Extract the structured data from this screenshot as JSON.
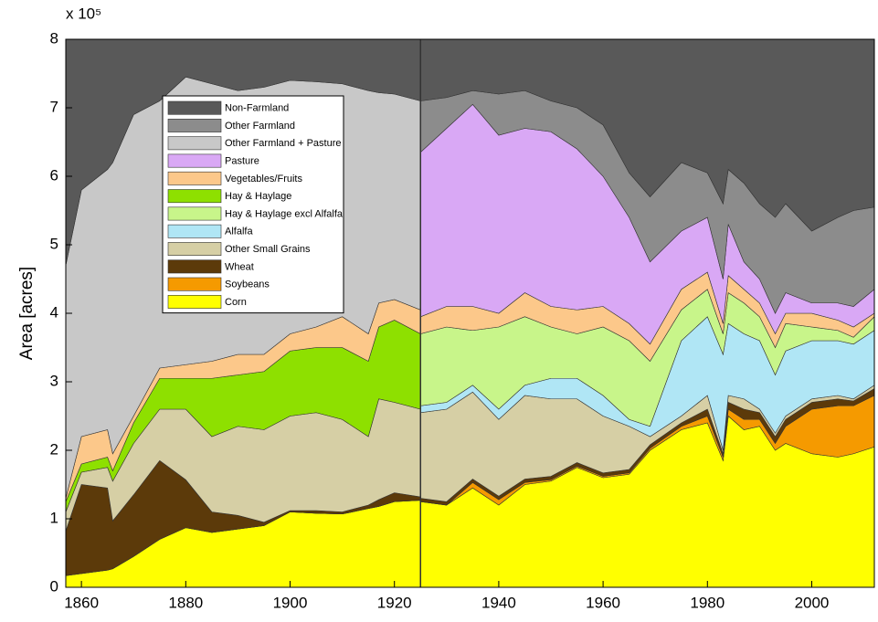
{
  "chart_data": {
    "type": "stacked_area",
    "y_label": "Area [acres]",
    "y_multiplier": "x 10⁵",
    "x": [
      1857,
      1860,
      1865,
      1866,
      1870,
      1875,
      1880,
      1885,
      1890,
      1895,
      1900,
      1905,
      1910,
      1915,
      1917,
      1920,
      1925,
      1925,
      1930,
      1935,
      1940,
      1945,
      1950,
      1955,
      1960,
      1965,
      1969,
      1975,
      1980,
      1983,
      1984,
      1987,
      1990,
      1993,
      1995,
      2000,
      2005,
      2008,
      2012
    ],
    "xlim": [
      1857,
      2012
    ],
    "xticks": [
      1860,
      1880,
      1900,
      1920,
      1940,
      1960,
      1980,
      2000
    ],
    "ylim": [
      0,
      8
    ],
    "yticks": [
      0,
      1,
      2,
      3,
      4,
      5,
      6,
      7,
      8
    ],
    "legend": "upper left",
    "series": [
      {
        "name": "Corn",
        "color": "#ffff00",
        "values": [
          0.17,
          0.2,
          0.25,
          0.27,
          0.45,
          0.7,
          0.87,
          0.8,
          0.85,
          0.9,
          1.1,
          1.08,
          1.07,
          1.15,
          1.18,
          1.25,
          1.27,
          1.25,
          1.2,
          1.45,
          1.2,
          1.5,
          1.55,
          1.75,
          1.6,
          1.65,
          2.0,
          2.3,
          2.4,
          1.85,
          2.5,
          2.3,
          2.35,
          2.0,
          2.1,
          1.95,
          1.9,
          1.95,
          2.05
        ]
      },
      {
        "name": "Soybeans",
        "color": "#f59a00",
        "values": [
          0,
          0,
          0,
          0,
          0,
          0,
          0,
          0,
          0,
          0,
          0,
          0,
          0,
          0,
          0,
          0,
          0,
          0,
          0,
          0.08,
          0.08,
          0.03,
          0.02,
          0.02,
          0.02,
          0.02,
          0.03,
          0.05,
          0.1,
          0.05,
          0.1,
          0.15,
          0.1,
          0.1,
          0.25,
          0.65,
          0.75,
          0.7,
          0.75
        ]
      },
      {
        "name": "Wheat",
        "color": "#5c3a0a",
        "values": [
          0.65,
          1.3,
          1.2,
          0.7,
          0.9,
          1.15,
          0.7,
          0.3,
          0.2,
          0.05,
          0.02,
          0.04,
          0.03,
          0.05,
          0.1,
          0.13,
          0.05,
          0.05,
          0.05,
          0.05,
          0.05,
          0.05,
          0.05,
          0.05,
          0.05,
          0.05,
          0.05,
          0.05,
          0.1,
          0.05,
          0.1,
          0.15,
          0.1,
          0.1,
          0.1,
          0.1,
          0.1,
          0.07,
          0.1
        ]
      },
      {
        "name": "Other Small Grains",
        "color": "#d6cfa5",
        "values": [
          0.28,
          0.18,
          0.3,
          0.58,
          0.75,
          0.75,
          1.03,
          1.1,
          1.3,
          1.35,
          1.38,
          1.43,
          1.35,
          1.0,
          1.47,
          1.32,
          1.28,
          1.25,
          1.35,
          1.27,
          1.12,
          1.22,
          1.13,
          0.93,
          0.83,
          0.63,
          0.12,
          0.1,
          0.2,
          0.05,
          0.1,
          0.15,
          0.05,
          0.05,
          0.05,
          0.05,
          0.05,
          0.03,
          0.05
        ]
      },
      {
        "name": "Alfalfa",
        "color": "#b0e6f5",
        "values": [
          null,
          null,
          null,
          null,
          null,
          null,
          null,
          null,
          null,
          null,
          null,
          null,
          null,
          null,
          null,
          null,
          null,
          0.1,
          0.1,
          0.1,
          0.15,
          0.15,
          0.3,
          0.3,
          0.3,
          0.1,
          0.15,
          1.1,
          1.15,
          1.4,
          1.05,
          0.95,
          1.0,
          0.85,
          0.95,
          0.85,
          0.8,
          0.8,
          0.8
        ]
      },
      {
        "name": "Hay & Haylage excl Alfalfa",
        "color": "#c8f58a",
        "values": [
          null,
          null,
          null,
          null,
          null,
          null,
          null,
          null,
          null,
          null,
          null,
          null,
          null,
          null,
          null,
          null,
          null,
          1.05,
          1.1,
          0.8,
          1.2,
          1.0,
          0.75,
          0.65,
          1.0,
          1.15,
          0.95,
          0.45,
          0.4,
          0.3,
          0.45,
          0.45,
          0.35,
          0.4,
          0.4,
          0.2,
          0.15,
          0.1,
          0.2
        ]
      },
      {
        "name": "Hay & Haylage",
        "color": "#8ee000",
        "values": [
          0.15,
          0.12,
          0.15,
          0.15,
          0.3,
          0.45,
          0.45,
          0.85,
          0.75,
          0.85,
          0.95,
          0.95,
          1.05,
          1.1,
          1.05,
          1.2,
          1.1,
          null,
          null,
          null,
          null,
          null,
          null,
          null,
          null,
          null,
          null,
          null,
          null,
          null,
          null,
          null,
          null,
          null,
          null,
          null,
          null,
          null,
          null
        ]
      },
      {
        "name": "Vegetables/Fruits",
        "color": "#fcc88a",
        "values": [
          0.05,
          0.4,
          0.4,
          0.25,
          0.1,
          0.15,
          0.2,
          0.25,
          0.3,
          0.25,
          0.25,
          0.3,
          0.45,
          0.4,
          0.35,
          0.3,
          0.35,
          0.25,
          0.3,
          0.35,
          0.2,
          0.35,
          0.3,
          0.35,
          0.3,
          0.25,
          0.25,
          0.3,
          0.25,
          0.15,
          0.25,
          0.2,
          0.2,
          0.2,
          0.15,
          0.2,
          0.15,
          0.15,
          0.05
        ]
      },
      {
        "name": "Pasture",
        "color": "#d9a8f5",
        "values": [
          null,
          null,
          null,
          null,
          null,
          null,
          null,
          null,
          null,
          null,
          null,
          null,
          null,
          null,
          null,
          null,
          null,
          2.4,
          2.6,
          2.95,
          2.6,
          2.4,
          2.55,
          2.35,
          1.9,
          1.55,
          1.2,
          0.85,
          0.8,
          0.65,
          0.75,
          0.4,
          0.35,
          0.3,
          0.3,
          0.15,
          0.25,
          0.3,
          0.35
        ]
      },
      {
        "name": "Other Farmland + Pasture",
        "color": "#c8c8c8",
        "values": [
          3.4,
          3.6,
          3.8,
          4.25,
          4.4,
          3.9,
          4.2,
          4.05,
          3.85,
          3.9,
          3.7,
          3.58,
          3.4,
          3.55,
          3.07,
          3.0,
          3.05,
          null,
          null,
          null,
          null,
          null,
          null,
          null,
          null,
          null,
          null,
          null,
          null,
          null,
          null,
          null,
          null,
          null,
          null,
          null,
          null,
          null,
          null
        ]
      },
      {
        "name": "Other Farmland",
        "color": "#8c8c8c",
        "values": [
          null,
          null,
          null,
          null,
          null,
          null,
          null,
          null,
          null,
          null,
          null,
          null,
          null,
          null,
          null,
          null,
          null,
          0.75,
          0.45,
          0.2,
          0.6,
          0.55,
          0.45,
          0.6,
          0.75,
          0.65,
          0.95,
          1.0,
          0.65,
          1.1,
          0.8,
          1.15,
          1.1,
          1.4,
          1.3,
          1.05,
          1.25,
          1.4,
          1.2
        ]
      },
      {
        "name": "Non-Farmland",
        "color": "#595959",
        "values": [
          3.3,
          2.2,
          1.9,
          1.8,
          1.1,
          0.9,
          0.55,
          0.65,
          0.75,
          0.7,
          0.6,
          0.62,
          0.65,
          0.75,
          0.78,
          0.8,
          0.9,
          0.9,
          0.85,
          0.75,
          0.8,
          0.75,
          0.9,
          1.0,
          1.25,
          1.95,
          2.3,
          1.8,
          1.95,
          2.4,
          1.9,
          2.1,
          2.4,
          2.6,
          2.4,
          2.8,
          2.6,
          2.5,
          2.45
        ]
      }
    ]
  }
}
